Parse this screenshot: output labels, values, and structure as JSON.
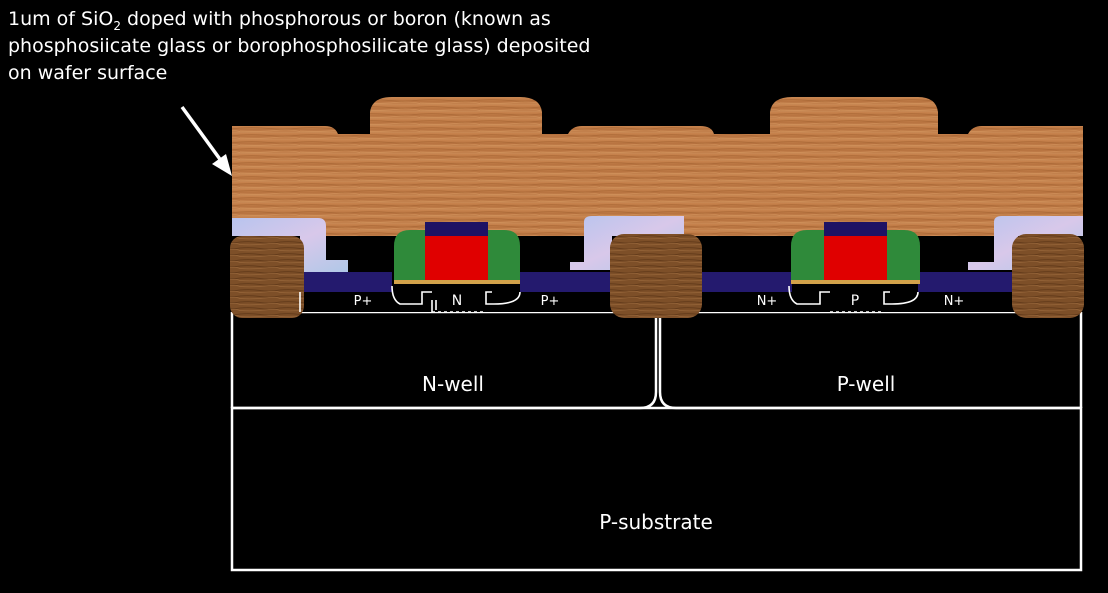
{
  "annotation": {
    "before_sub": "1um of SiO",
    "sub": "2",
    "after_sub": " doped with phosphorous or boron (known as phosphosiicate glass or borophosphosilicate glass) deposited on wafer surface"
  },
  "labels": {
    "n_well": "N-well",
    "p_well": "P-well",
    "p_substrate": "P-substrate",
    "pmos_source": "P+",
    "pmos_drain": "P+",
    "pmos_channel": "N",
    "nmos_source": "N+",
    "nmos_drain": "N+",
    "nmos_channel": "P"
  },
  "colors": {
    "background": "#000000",
    "glass_layer": "#c07a46",
    "gate_poly": "#e00000",
    "gate_cap": "#1e1264",
    "spacer": "#2f8a3a",
    "silicide": "#241a6e",
    "field_oxide": "#8a5a30",
    "liner": "#c8c8e8",
    "outline": "#ffffff",
    "arrow": "#ffffff"
  }
}
